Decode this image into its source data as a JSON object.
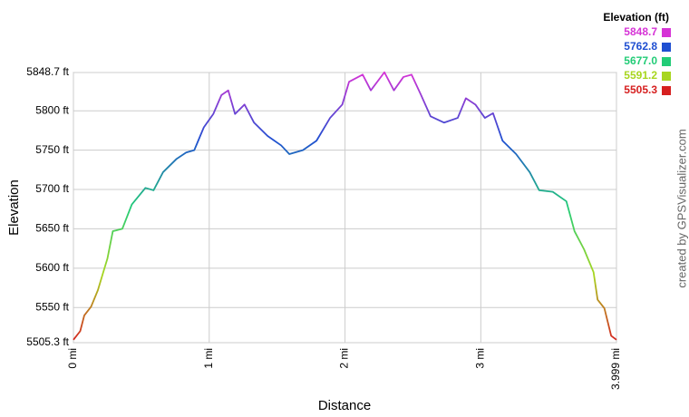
{
  "chart_data": {
    "type": "line",
    "xlabel": "Distance",
    "ylabel": "Elevation",
    "credit": "created by GPSVisualizer.com",
    "x": [
      0,
      0.05,
      0.08,
      0.13,
      0.18,
      0.22,
      0.25,
      0.29,
      0.36,
      0.43,
      0.53,
      0.59,
      0.66,
      0.76,
      0.83,
      0.89,
      0.96,
      1.03,
      1.09,
      1.14,
      1.19,
      1.26,
      1.33,
      1.43,
      1.53,
      1.59,
      1.69,
      1.79,
      1.89,
      1.98,
      2.03,
      2.13,
      2.19,
      2.29,
      2.36,
      2.43,
      2.49,
      2.56,
      2.63,
      2.73,
      2.83,
      2.89,
      2.96,
      3.03,
      3.09,
      3.16,
      3.26,
      3.36,
      3.43,
      3.53,
      3.63,
      3.69,
      3.76,
      3.83,
      3.86,
      3.91,
      3.96,
      3.999
    ],
    "series": [
      {
        "values": [
          5509,
          5520,
          5540,
          5551,
          5572,
          5595,
          5612,
          5647,
          5650,
          5681,
          5702,
          5699,
          5722,
          5739,
          5747,
          5750,
          5779,
          5796,
          5820,
          5826,
          5796,
          5808,
          5785,
          5768,
          5756,
          5745,
          5750,
          5762,
          5791,
          5808,
          5837,
          5846,
          5826,
          5849,
          5826,
          5843,
          5846,
          5820,
          5793,
          5785,
          5791,
          5816,
          5808,
          5791,
          5797,
          5762,
          5745,
          5722,
          5699,
          5697,
          5685,
          5647,
          5624,
          5595,
          5560,
          5549,
          5514,
          5509
        ]
      }
    ],
    "xlim": [
      0,
      3.999
    ],
    "xticks": [
      {
        "value": 0,
        "label": "0 mi"
      },
      {
        "value": 1,
        "label": "1 mi"
      },
      {
        "value": 2,
        "label": "2 mi"
      },
      {
        "value": 3,
        "label": "3 mi"
      },
      {
        "value": 3.999,
        "label": "3.999 mi"
      }
    ],
    "ylim": [
      5505.3,
      5848.7
    ],
    "yticks": [
      {
        "value": 5505.3,
        "label": "5505.3 ft"
      },
      {
        "value": 5550,
        "label": "5550 ft"
      },
      {
        "value": 5600,
        "label": "5600 ft"
      },
      {
        "value": 5650,
        "label": "5650 ft"
      },
      {
        "value": 5700,
        "label": "5700 ft"
      },
      {
        "value": 5750,
        "label": "5750 ft"
      },
      {
        "value": 5800,
        "label": "5800 ft"
      },
      {
        "value": 5848.7,
        "label": "5848.7 ft"
      }
    ],
    "grid": true,
    "legend": {
      "title": "Elevation (ft)",
      "entries": [
        {
          "value": 5848.7,
          "color": "#d633d6"
        },
        {
          "value": 5762.8,
          "color": "#1f4fd1"
        },
        {
          "value": 5677,
          "label": "5677.0",
          "color": "#22cc77"
        },
        {
          "value": 5591.2,
          "color": "#a8d61f"
        },
        {
          "value": 5505.3,
          "color": "#d62020"
        }
      ]
    }
  }
}
